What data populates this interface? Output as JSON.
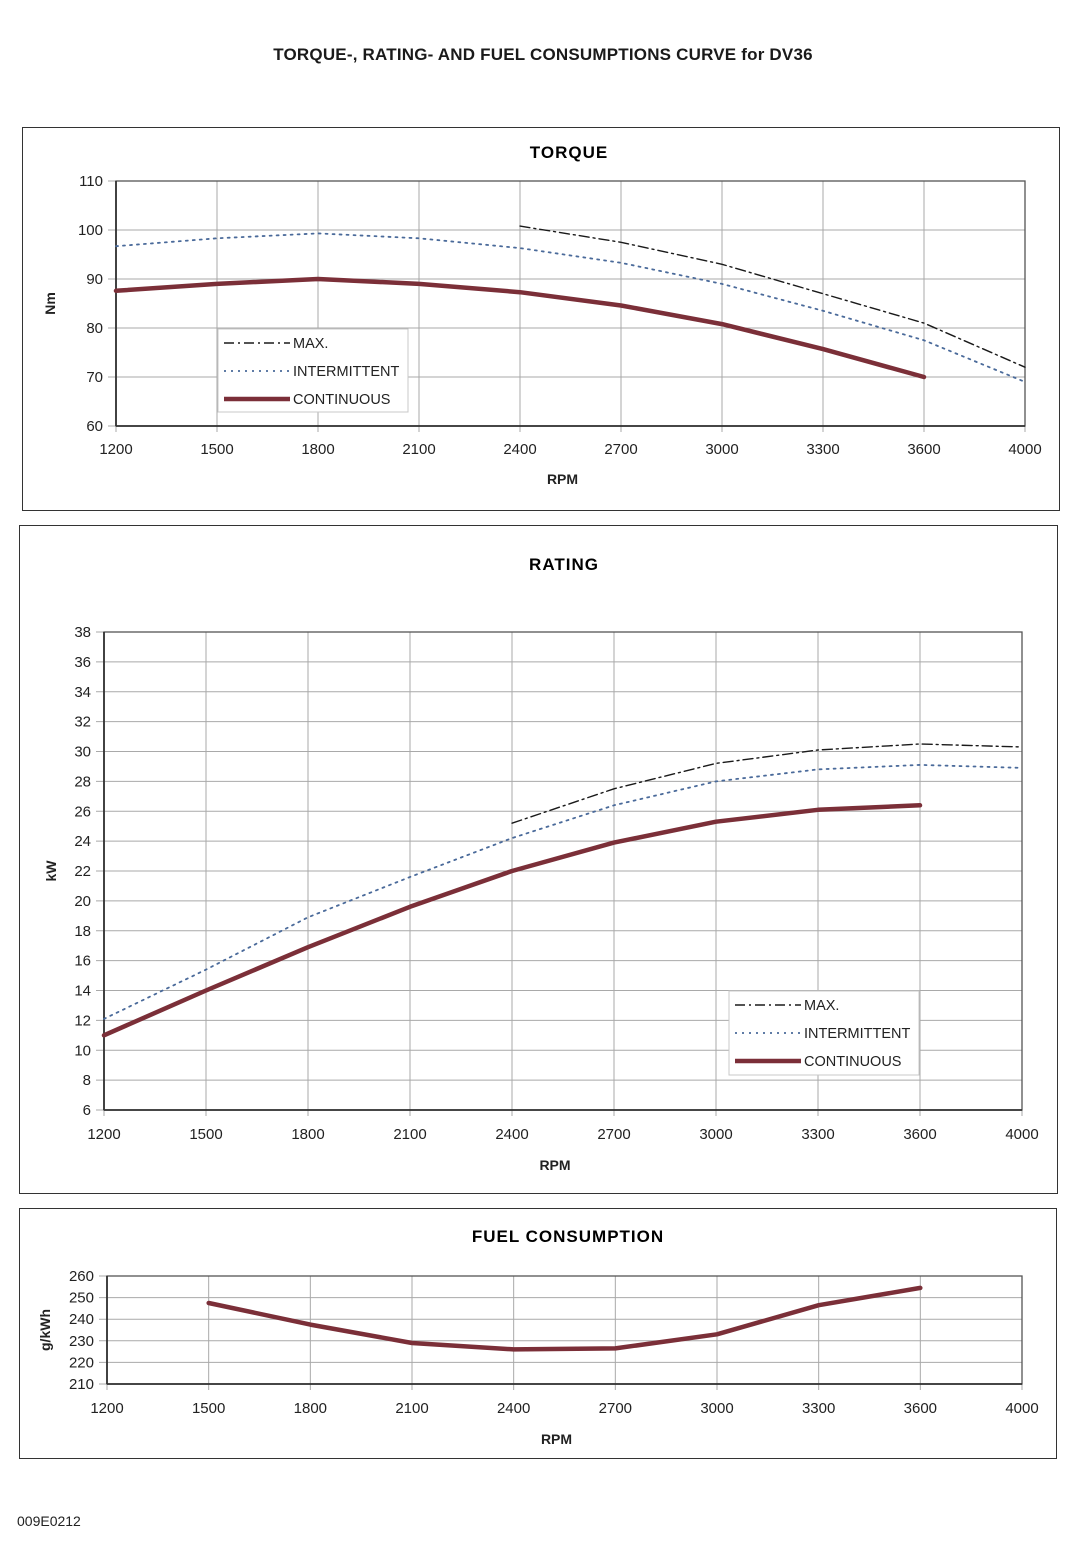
{
  "document": {
    "title": "TORQUE-, RATING- AND FUEL CONSUMPTIONS CURVE for DV36",
    "footer_code": "009E0212"
  },
  "colors": {
    "max": "#1a1a1a",
    "intermittent": "#4a6a9a",
    "continuous": "#7b2f38",
    "grid": "#a9a9a9",
    "axis": "#555555"
  },
  "chart_data": [
    {
      "id": "torque",
      "type": "line",
      "title": "TORQUE",
      "xlabel": "RPM",
      "ylabel": "Nm",
      "x_scale": "categorical",
      "categories": [
        "1200",
        "1500",
        "1800",
        "2100",
        "2400",
        "2700",
        "3000",
        "3300",
        "3600",
        "4000"
      ],
      "ylim": [
        60,
        110
      ],
      "yticks": [
        60,
        70,
        80,
        90,
        100,
        110
      ],
      "grid": true,
      "legend": {
        "position": "lower-left",
        "entries": [
          "MAX.",
          "INTERMITTENT",
          "CONTINUOUS"
        ]
      },
      "series": [
        {
          "name": "MAX.",
          "style": "dash-dot",
          "values": [
            null,
            null,
            null,
            null,
            100.8,
            97.5,
            93.0,
            87.0,
            81.0,
            72.0
          ]
        },
        {
          "name": "INTERMITTENT",
          "style": "dotted",
          "values": [
            96.7,
            98.3,
            99.3,
            98.3,
            96.3,
            93.3,
            89.0,
            83.5,
            77.5,
            69.0
          ]
        },
        {
          "name": "CONTINUOUS",
          "style": "solid-thick",
          "values": [
            87.6,
            89.0,
            90.0,
            89.0,
            87.3,
            84.6,
            80.8,
            75.7,
            70.0,
            null
          ]
        }
      ]
    },
    {
      "id": "rating",
      "type": "line",
      "title": "RATING",
      "xlabel": "RPM",
      "ylabel": "kW",
      "x_scale": "categorical",
      "categories": [
        "1200",
        "1500",
        "1800",
        "2100",
        "2400",
        "2700",
        "3000",
        "3300",
        "3600",
        "4000"
      ],
      "ylim": [
        6,
        38
      ],
      "yticks": [
        6,
        8,
        10,
        12,
        14,
        16,
        18,
        20,
        22,
        24,
        26,
        28,
        30,
        32,
        34,
        36,
        38
      ],
      "grid": true,
      "legend": {
        "position": "lower-right",
        "entries": [
          "MAX.",
          "INTERMITTENT",
          "CONTINUOUS"
        ]
      },
      "series": [
        {
          "name": "MAX.",
          "style": "dash-dot",
          "values": [
            null,
            null,
            null,
            null,
            25.2,
            27.5,
            29.2,
            30.1,
            30.5,
            30.3
          ]
        },
        {
          "name": "INTERMITTENT",
          "style": "dotted",
          "values": [
            12.1,
            15.4,
            18.9,
            21.6,
            24.2,
            26.4,
            28.0,
            28.8,
            29.1,
            28.9
          ]
        },
        {
          "name": "CONTINUOUS",
          "style": "solid-thick",
          "values": [
            11.0,
            14.0,
            16.9,
            19.6,
            22.0,
            23.9,
            25.3,
            26.1,
            26.4,
            null
          ]
        }
      ]
    },
    {
      "id": "fuel",
      "type": "line",
      "title": "FUEL CONSUMPTION",
      "xlabel": "RPM",
      "ylabel": "g/kWh",
      "x_scale": "categorical",
      "categories": [
        "1200",
        "1500",
        "1800",
        "2100",
        "2400",
        "2700",
        "3000",
        "3300",
        "3600",
        "4000"
      ],
      "ylim": [
        210,
        260
      ],
      "yticks": [
        210,
        220,
        230,
        240,
        250,
        260
      ],
      "grid": true,
      "legend": null,
      "series": [
        {
          "name": "CONTINUOUS",
          "style": "solid-thick",
          "values": [
            null,
            247.5,
            237.5,
            229.0,
            226.0,
            226.5,
            233.0,
            246.5,
            254.5,
            null
          ]
        }
      ]
    }
  ]
}
